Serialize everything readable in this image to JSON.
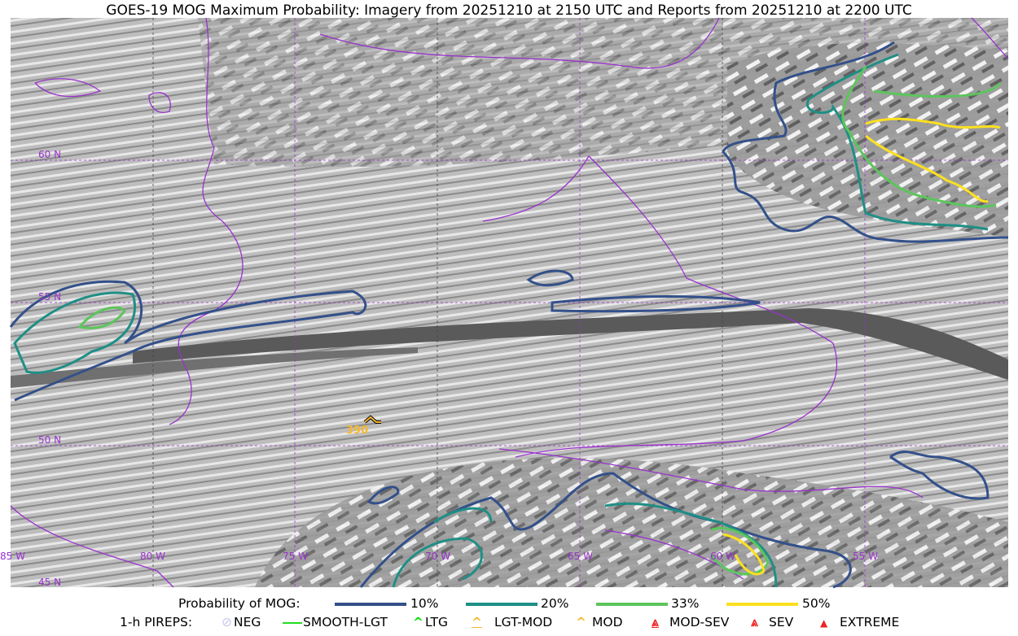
{
  "title": "GOES-19 MOG Maximum Probability: Imagery from 20251210 at 2150 UTC and Reports from 20251210 at 2200 UTC",
  "map": {
    "latitude_labels": [
      "60 N",
      "55 N",
      "50 N",
      "45 N"
    ],
    "longitude_labels": [
      "85 W",
      "80 W",
      "75 W",
      "70 W",
      "65 W",
      "60 W",
      "55 W"
    ],
    "pirep": {
      "type": "MOD",
      "label": "390",
      "color": "#f5b82e"
    },
    "coastline_color": "#9932cc"
  },
  "legend": {
    "probability_title": "Probability of MOG:",
    "probability_items": [
      {
        "label": "10%",
        "color": "#33508a"
      },
      {
        "label": "20%",
        "color": "#1f8f85"
      },
      {
        "label": "33%",
        "color": "#5cc55c"
      },
      {
        "label": "50%",
        "color": "#fde020"
      }
    ],
    "pireps_title": "1-h PIREPS:",
    "pirep_items": [
      {
        "label": "NEG",
        "icon": "neg-circle-icon",
        "color": "#c8c8f0"
      },
      {
        "label": "SMOOTH-LGT",
        "icon": "line-icon",
        "color": "#22dd22"
      },
      {
        "label": "LTG",
        "icon": "caret-icon",
        "color": "#00dd00"
      },
      {
        "label": "LGT-MOD",
        "icon": "caret-bar-icon",
        "color": "#f5b82e"
      },
      {
        "label": "MOD",
        "icon": "caret-icon",
        "color": "#f5b82e"
      },
      {
        "label": "MOD-SEV",
        "icon": "double-caret-bar-icon",
        "color": "#ee2222"
      },
      {
        "label": "SEV",
        "icon": "double-caret-icon",
        "color": "#ee2222"
      },
      {
        "label": "EXTREME",
        "icon": "filled-triangle-icon",
        "color": "#ee2222"
      }
    ]
  }
}
